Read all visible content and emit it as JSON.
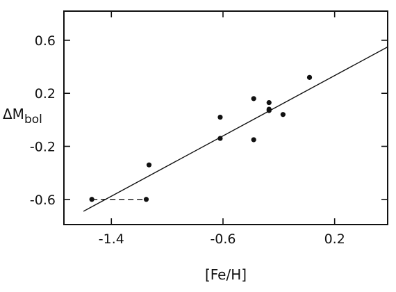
{
  "chart_data": {
    "type": "scatter",
    "title": "",
    "xlabel": "[Fe/H]",
    "ylabel": "ΔM",
    "ylabel_subscript": "bol",
    "xlim": [
      -1.74,
      0.58
    ],
    "ylim": [
      -0.79,
      0.82
    ],
    "xticks": [
      -1.4,
      -0.6,
      0.2
    ],
    "xtick_labels": [
      "-1.4",
      "-0.6",
      "0.2"
    ],
    "yticks": [
      0.6,
      0.2,
      -0.2,
      -0.6
    ],
    "ytick_labels": [
      "0.6",
      "0.2",
      "-0.2",
      "-0.6"
    ],
    "grid": false,
    "series": [
      {
        "kind": "points",
        "points": [
          {
            "x": -1.54,
            "y": -0.6
          },
          {
            "x": -1.15,
            "y": -0.6
          },
          {
            "x": -1.13,
            "y": -0.34
          },
          {
            "x": -0.62,
            "y": 0.02
          },
          {
            "x": -0.62,
            "y": -0.14
          },
          {
            "x": -0.38,
            "y": 0.16
          },
          {
            "x": -0.38,
            "y": -0.15
          },
          {
            "x": -0.27,
            "y": 0.13
          },
          {
            "x": -0.27,
            "y": 0.08
          },
          {
            "x": -0.27,
            "y": 0.07
          },
          {
            "x": -0.17,
            "y": 0.04
          },
          {
            "x": 0.02,
            "y": 0.32
          }
        ]
      },
      {
        "kind": "fit-line",
        "x": [
          -1.6,
          0.58
        ],
        "y": [
          -0.69,
          0.55
        ]
      },
      {
        "kind": "dashed-connector",
        "x": [
          -1.54,
          -1.15
        ],
        "y": [
          -0.6,
          -0.6
        ]
      }
    ]
  }
}
